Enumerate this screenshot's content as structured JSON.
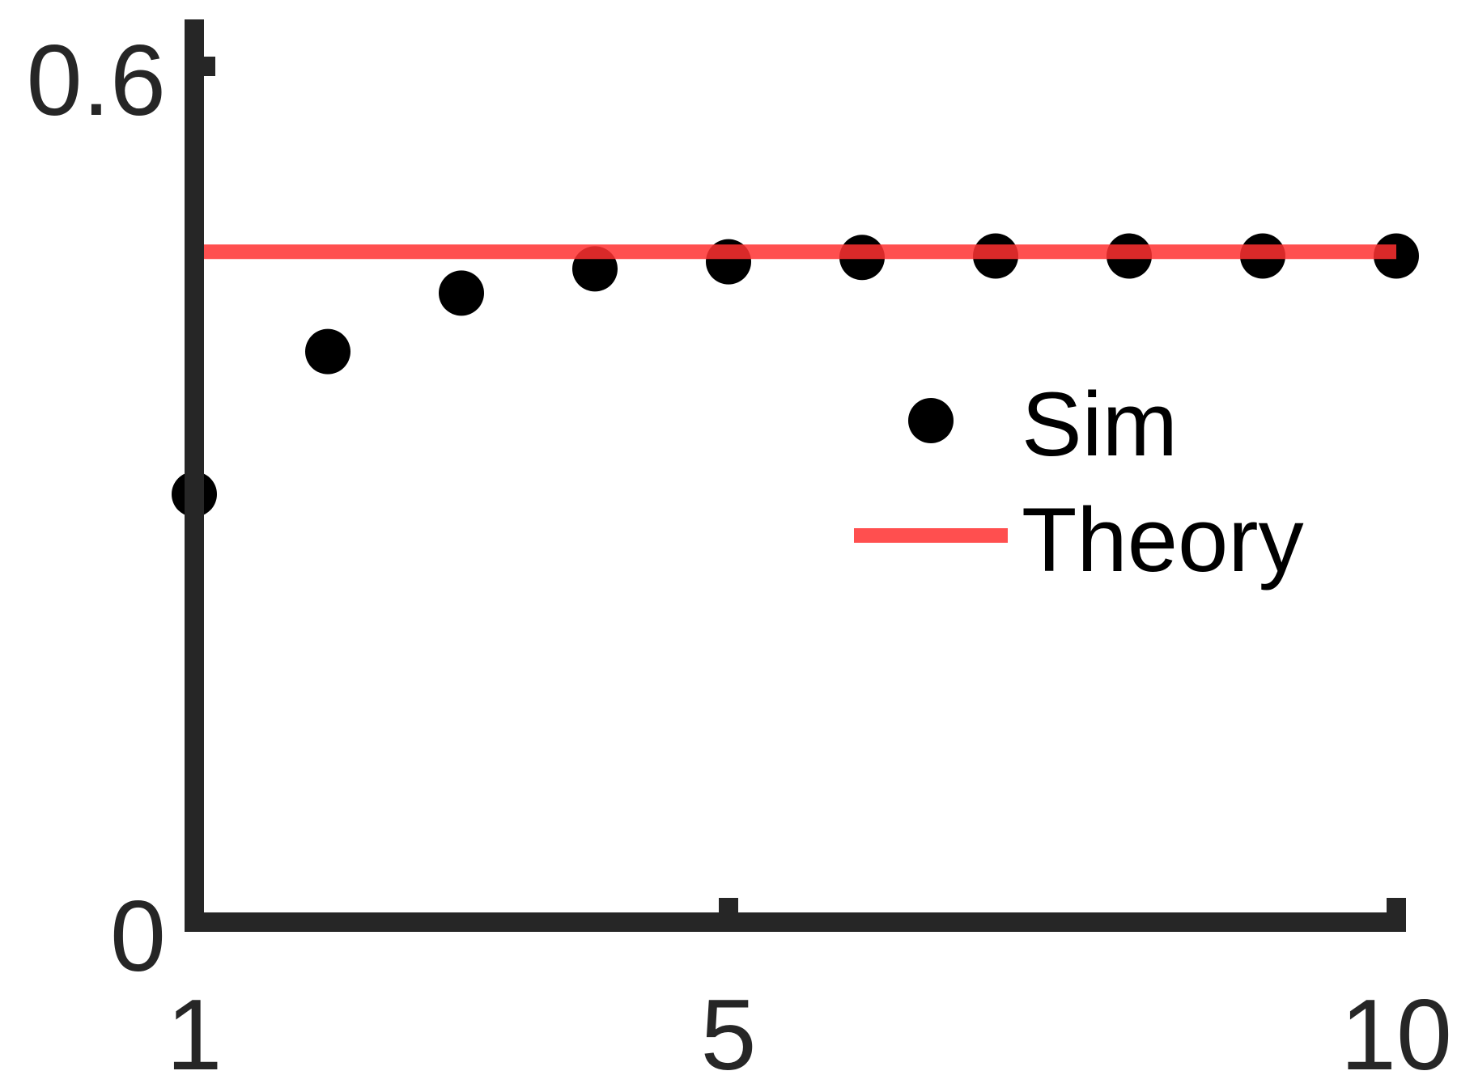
{
  "chart_data": {
    "type": "scatter",
    "title": "",
    "xlabel": "",
    "ylabel": "",
    "xlim": [
      1,
      10
    ],
    "ylim": [
      0,
      0.6
    ],
    "x_ticks": [
      1,
      5,
      10
    ],
    "x_tick_labels": [
      "1",
      "5",
      "10"
    ],
    "y_ticks": [
      0,
      0.6
    ],
    "y_tick_labels": [
      "0",
      "0.6"
    ],
    "grid": false,
    "legend_position": "center-right",
    "series": [
      {
        "name": "Sim",
        "kind": "scatter",
        "color": "#000000",
        "x": [
          1,
          2,
          3,
          4,
          5,
          6,
          7,
          8,
          9,
          10
        ],
        "y": [
          0.3,
          0.4,
          0.441,
          0.458,
          0.463,
          0.466,
          0.467,
          0.467,
          0.467,
          0.467
        ]
      },
      {
        "name": "Theory",
        "kind": "line",
        "color": "#ff3030",
        "x": [
          1,
          10
        ],
        "y": [
          0.47,
          0.47
        ]
      }
    ],
    "axis_color": "#262626"
  }
}
